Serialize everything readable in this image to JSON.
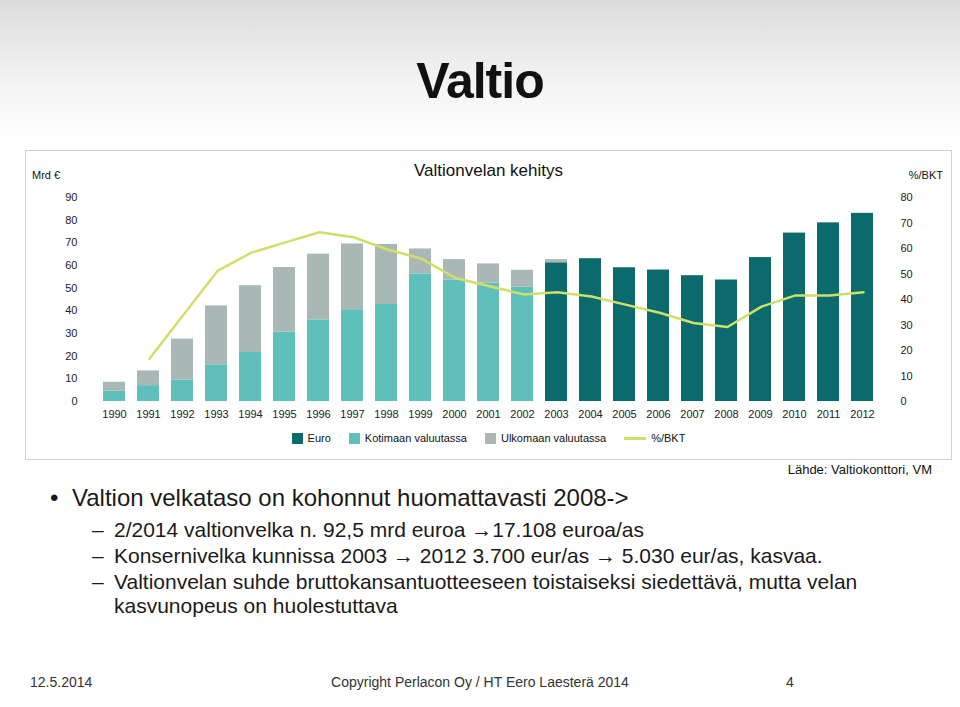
{
  "slide_title": "Valtio",
  "chart_data": {
    "type": "bar",
    "title": "Valtionvelan kehitys",
    "y_label": "Mrd €",
    "y2_label": "%/BKT",
    "stacked": true,
    "grid": false,
    "categories": [
      "1990",
      "1991",
      "1992",
      "1993",
      "1994",
      "1995",
      "1996",
      "1997",
      "1998",
      "1999",
      "2000",
      "2001",
      "2002",
      "2003",
      "2004",
      "2005",
      "2006",
      "2007",
      "2008",
      "2009",
      "2010",
      "2011",
      "2012"
    ],
    "ylim": [
      0,
      90
    ],
    "yticks": [
      0,
      10,
      20,
      30,
      40,
      50,
      60,
      70,
      80,
      90
    ],
    "y2lim": [
      0,
      80
    ],
    "y2ticks": [
      0,
      10,
      20,
      30,
      40,
      50,
      60,
      70,
      80
    ],
    "series": [
      {
        "name": "Euro",
        "type": "bar",
        "color": "#0a6a6c",
        "values": [
          null,
          null,
          null,
          null,
          null,
          null,
          null,
          null,
          null,
          null,
          null,
          null,
          null,
          61.2,
          63,
          59,
          58,
          55.5,
          53.6,
          63.5,
          74.3,
          78.8,
          83
        ]
      },
      {
        "name": "Kotimaan valuutassa",
        "type": "bar",
        "color": "#5ebfbb",
        "values": [
          4.5,
          7,
          9.5,
          16.2,
          21.6,
          30.6,
          36,
          40.5,
          42.8,
          56.3,
          53.6,
          52.2,
          50.4,
          null,
          null,
          null,
          null,
          null,
          null,
          null,
          null,
          null,
          null
        ]
      },
      {
        "name": "Ulkomaan valuutassa",
        "type": "bar",
        "color": "#a9b8b5",
        "values": [
          4,
          6.5,
          18,
          26,
          29.5,
          28.5,
          29,
          29,
          26.5,
          11,
          9,
          8.5,
          7.5,
          1.4,
          null,
          null,
          null,
          null,
          null,
          null,
          null,
          null,
          null
        ]
      },
      {
        "name": "%/BKT",
        "type": "line",
        "axis": "y2",
        "color": "#cfe06a",
        "values": [
          null,
          16.8,
          34,
          51.2,
          58.4,
          62.4,
          66.4,
          64.4,
          59.6,
          56,
          48.4,
          45.2,
          42,
          42.8,
          41.2,
          38,
          34.8,
          30.8,
          29.2,
          37.2,
          41.6,
          41.6,
          42.8
        ]
      }
    ]
  },
  "source": "Lähde: Valtiokonttori, VM",
  "bullets": [
    {
      "text": "Valtion velkataso on kohonnut huomattavasti 2008->",
      "items": [
        "2/2014 valtionvelka n. 92,5 mrd euroa →17.108 euroa/as",
        "Konsernivelka kunnissa 2003 → 2012 3.700 eur/as → 5.030 eur/as, kasvaa.",
        "Valtionvelan suhde bruttokansantuotteeseen toistaiseksi siedettävä, mutta velan kasvunopeus on huolestuttava"
      ]
    }
  ],
  "footer": {
    "date": "12.5.2014",
    "copyright": "Copyright Perlacon Oy / HT Eero Laesterä 2014",
    "page": "4"
  }
}
